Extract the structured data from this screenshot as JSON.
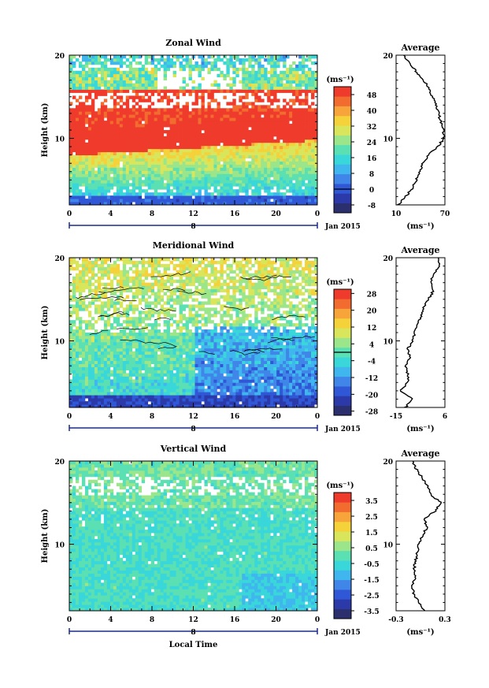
{
  "chart_data": [
    {
      "type": "heatmap",
      "title": "Zonal Wind",
      "ylabel": "Height (km)",
      "yticks": [
        "10",
        "20"
      ],
      "ylim": [
        2,
        20
      ],
      "xticks": [
        "0",
        "4",
        "8",
        "12",
        "16",
        "20",
        "0"
      ],
      "xlim": [
        0,
        24
      ],
      "date_marker": "8",
      "month_label": "Jan 2015",
      "colorbar": {
        "unit_label": "(ms⁻¹)",
        "tick_labels": [
          "48",
          "40",
          "32",
          "24",
          "16",
          "8",
          "0",
          "-8"
        ],
        "range": [
          -12,
          52
        ],
        "zero_line": true,
        "colors": [
          "#2b2f6e",
          "#2b3aa8",
          "#2f57d6",
          "#3f86e8",
          "#40b6ee",
          "#39d7d9",
          "#5ae0b3",
          "#9be58a",
          "#d9e65b",
          "#f5d13a",
          "#f7a43a",
          "#f26c2f",
          "#ef3b2c"
        ]
      },
      "average_profile": {
        "title": "Average",
        "xlabel": "(ms⁻¹)",
        "xticks": [
          "10",
          "70"
        ],
        "yticks": [
          "10",
          "20"
        ],
        "xlim": [
          10,
          70
        ],
        "heights": [
          2,
          3,
          4,
          5,
          6,
          7,
          8,
          9,
          10,
          11,
          12,
          13,
          14,
          15,
          16,
          17,
          18,
          19,
          20
        ],
        "values": [
          12,
          22,
          30,
          35,
          39,
          43,
          50,
          61,
          69,
          68,
          65,
          62,
          59,
          55,
          50,
          44,
          35,
          26,
          20
        ]
      }
    },
    {
      "type": "heatmap",
      "title": "Meridional Wind",
      "ylabel": "Height (km)",
      "yticks": [
        "10",
        "20"
      ],
      "ylim": [
        2,
        20
      ],
      "xticks": [
        "0",
        "4",
        "8",
        "12",
        "16",
        "20",
        "0"
      ],
      "xlim": [
        0,
        24
      ],
      "date_marker": "8",
      "month_label": "Jan 2015",
      "colorbar": {
        "unit_label": "(ms⁻¹)",
        "tick_labels": [
          "28",
          "20",
          "12",
          "4",
          "-4",
          "-12",
          "-20",
          "-28"
        ],
        "range": [
          -30,
          30
        ],
        "zero_line": true,
        "colors": [
          "#2b2f6e",
          "#2b3aa8",
          "#2f57d6",
          "#3f86e8",
          "#40b6ee",
          "#39d7d9",
          "#5ae0b3",
          "#9be58a",
          "#d9e65b",
          "#f5d13a",
          "#f7a43a",
          "#f26c2f",
          "#ef3b2c"
        ]
      },
      "average_profile": {
        "title": "Average",
        "xlabel": "(ms⁻¹)",
        "xticks": [
          "-15",
          "6"
        ],
        "yticks": [
          "10",
          "20"
        ],
        "xlim": [
          -15,
          6
        ],
        "heights": [
          2,
          3,
          4,
          5,
          6,
          7,
          8,
          9,
          10,
          11,
          12,
          13,
          14,
          15,
          16,
          17,
          18,
          19,
          20
        ],
        "values": [
          -11,
          -8,
          -13,
          -10,
          -10,
          -11,
          -9,
          -10,
          -8,
          -7,
          -6,
          -4,
          -3,
          -1,
          1,
          0,
          1,
          4,
          3
        ]
      }
    },
    {
      "type": "heatmap",
      "title": "Vertical Wind",
      "ylabel": "Height (km)",
      "xlabel": "Local Time",
      "yticks": [
        "10",
        "20"
      ],
      "ylim": [
        2,
        20
      ],
      "xticks": [
        "0",
        "4",
        "8",
        "12",
        "16",
        "20",
        "0"
      ],
      "xlim": [
        0,
        24
      ],
      "date_marker": "8",
      "month_label": "Jan 2015",
      "colorbar": {
        "unit_label": "(ms⁻¹)",
        "tick_labels": [
          "3.5",
          "2.5",
          "1.5",
          "0.5",
          "-0.5",
          "-1.5",
          "-2.5",
          "-3.5"
        ],
        "range": [
          -4,
          4
        ],
        "zero_line": false,
        "colors": [
          "#2b2f6e",
          "#2b3aa8",
          "#2f57d6",
          "#3f86e8",
          "#40b6ee",
          "#39d7d9",
          "#5ae0b3",
          "#9be58a",
          "#d9e65b",
          "#f5d13a",
          "#f7a43a",
          "#f26c2f",
          "#ef3b2c"
        ]
      },
      "average_profile": {
        "title": "Average",
        "xlabel": "(ms⁻¹)",
        "xticks": [
          "-0.3",
          "0.3"
        ],
        "yticks": [
          "10",
          "20"
        ],
        "xlim": [
          -0.3,
          0.3
        ],
        "heights": [
          2,
          3,
          4,
          5,
          6,
          7,
          8,
          9,
          10,
          11,
          12,
          13,
          14,
          15,
          16,
          17,
          18,
          19,
          20
        ],
        "values": [
          0.05,
          -0.02,
          -0.08,
          -0.1,
          -0.06,
          -0.08,
          -0.06,
          -0.04,
          -0.02,
          0.02,
          0.08,
          0.05,
          0.18,
          0.25,
          0.12,
          0.08,
          0.02,
          -0.05,
          -0.1
        ]
      }
    }
  ]
}
